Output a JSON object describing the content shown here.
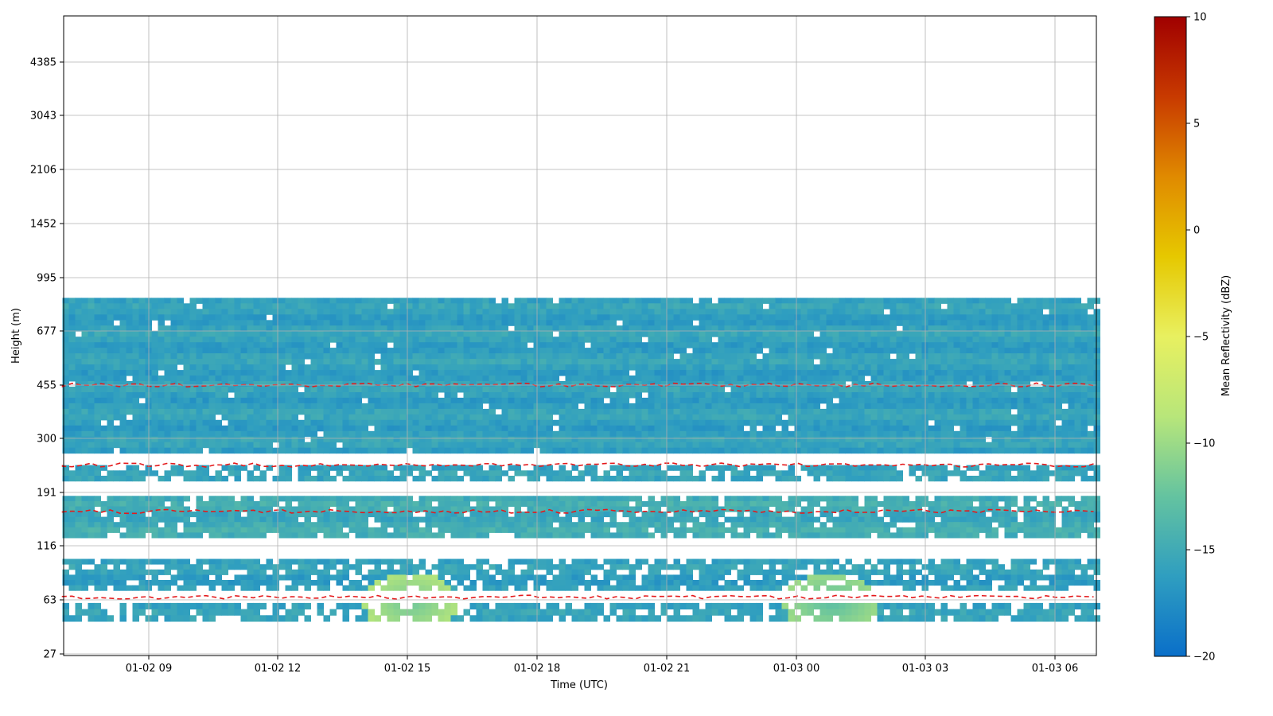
{
  "chart_data": {
    "type": "heatmap",
    "xlabel": "Time (UTC)",
    "ylabel": "Height (m)",
    "colorbar_label": "Mean Reflectivity (dBZ)",
    "x_ticks": [
      "01-02 09",
      "01-02 12",
      "01-02 15",
      "01-02 18",
      "01-02 21",
      "01-03 00",
      "01-03 03",
      "01-03 06"
    ],
    "x_range": [
      "01-02 07:00",
      "01-03 07:00"
    ],
    "y_ticks": [
      27,
      63,
      116,
      191,
      300,
      455,
      677,
      995,
      1452,
      2106,
      3043,
      4385
    ],
    "colorbar_ticks": [
      10,
      5,
      0,
      -5,
      -10,
      -15,
      -20
    ],
    "colorbar_range": [
      -20,
      10
    ],
    "colormap": [
      "#0a6fc9",
      "#2f9ec0",
      "#64c3a0",
      "#b8e67a",
      "#e8f060",
      "#e6c800",
      "#e08a00",
      "#c83a00",
      "#a00000"
    ],
    "grid": true,
    "contour_color": "#e41a1c",
    "layers": [
      {
        "height_range": [
          265,
          860
        ],
        "dbz": -16
      },
      {
        "height_range": [
          210,
          240
        ],
        "dbz": -16
      },
      {
        "height_range": [
          125,
          185
        ],
        "dbz": -15
      },
      {
        "height_range": [
          70,
          100
        ],
        "dbz": -16
      },
      {
        "height_range": [
          45,
          60
        ],
        "dbz": -16
      }
    ],
    "enhanced_regions": [
      {
        "time": "01-02 15:00",
        "height": 60,
        "dbz": -12
      },
      {
        "time": "01-03 00:45",
        "height": 60,
        "dbz": -13
      }
    ]
  }
}
